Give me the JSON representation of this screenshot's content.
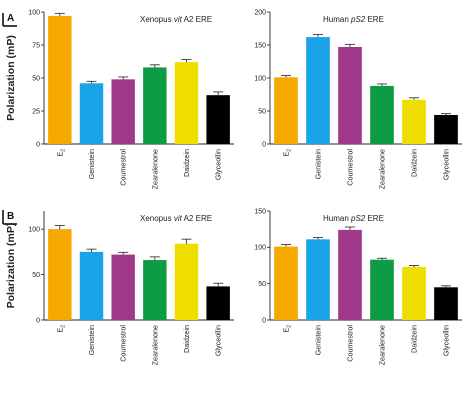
{
  "panels": [
    {
      "label": "A"
    },
    {
      "label": "B"
    }
  ],
  "y_axis_label": "Polarization (mP)",
  "chart_data": [
    {
      "type": "bar",
      "panel": "A",
      "title_parts": [
        {
          "text": "Xenopus "
        },
        {
          "text": "vit",
          "italic": true
        },
        {
          "text": " A2 ERE"
        }
      ],
      "categories": [
        "E2",
        "Genistein",
        "Coumestrol",
        "Zearalenone",
        "Daidzein",
        "Glyceollin"
      ],
      "values": [
        97,
        46,
        49,
        58,
        62,
        37
      ],
      "errors": [
        2,
        1.5,
        1.8,
        2,
        2,
        2.5
      ],
      "colors": [
        "#f5a800",
        "#1aa3e8",
        "#a1398a",
        "#0e9b45",
        "#f0dd00",
        "#000000"
      ],
      "ylim": [
        0,
        100
      ],
      "yticks": [
        0,
        25,
        50,
        75,
        100
      ],
      "ylabel": "Polarization (mP)",
      "grid": false
    },
    {
      "type": "bar",
      "panel": "A",
      "title_parts": [
        {
          "text": "Human "
        },
        {
          "text": "pS2",
          "italic": true
        },
        {
          "text": " ERE"
        }
      ],
      "categories": [
        "E2",
        "Genistein",
        "Coumestrol",
        "Zearalenone",
        "Daidzein",
        "Glyceollin"
      ],
      "values": [
        101,
        162,
        147,
        88,
        67,
        44
      ],
      "errors": [
        3,
        4,
        4,
        3,
        3,
        2
      ],
      "colors": [
        "#f5a800",
        "#1aa3e8",
        "#a1398a",
        "#0e9b45",
        "#f0dd00",
        "#000000"
      ],
      "ylim": [
        0,
        200
      ],
      "yticks": [
        0,
        50,
        100,
        150,
        200
      ],
      "ylabel": "",
      "grid": false
    },
    {
      "type": "bar",
      "panel": "B",
      "title_parts": [
        {
          "text": "Xenopus "
        },
        {
          "text": "vit",
          "italic": true
        },
        {
          "text": " A2 ERE"
        }
      ],
      "categories": [
        "E2",
        "Genistein",
        "Coumestrol",
        "Zearalenone",
        "Daidzein",
        "Glyceollin"
      ],
      "values": [
        100,
        75,
        72,
        66,
        84,
        37
      ],
      "errors": [
        4,
        3,
        2.5,
        3.5,
        5,
        3.5
      ],
      "colors": [
        "#f5a800",
        "#1aa3e8",
        "#a1398a",
        "#0e9b45",
        "#f0dd00",
        "#000000"
      ],
      "ylim": [
        0,
        120
      ],
      "yticks": [
        0,
        50,
        100
      ],
      "ylabel": "Polarization (mP)",
      "grid": false
    },
    {
      "type": "bar",
      "panel": "B",
      "title_parts": [
        {
          "text": "Human "
        },
        {
          "text": "pS2",
          "italic": true
        },
        {
          "text": " ERE"
        }
      ],
      "categories": [
        "E2",
        "Genistein",
        "Coumestrol",
        "Zearalenone",
        "Daidzein",
        "Glyceollin"
      ],
      "values": [
        101,
        111,
        124,
        83,
        73,
        45
      ],
      "errors": [
        3,
        2.5,
        4,
        2,
        2,
        2
      ],
      "colors": [
        "#f5a800",
        "#1aa3e8",
        "#a1398a",
        "#0e9b45",
        "#f0dd00",
        "#000000"
      ],
      "ylim": [
        0,
        150
      ],
      "yticks": [
        0,
        50,
        100,
        150
      ],
      "ylabel": "",
      "grid": false
    }
  ]
}
